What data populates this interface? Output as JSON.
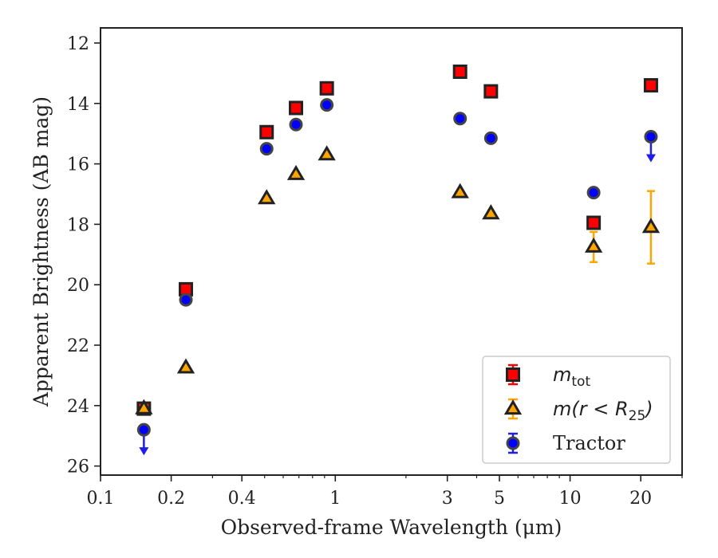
{
  "chart_data": {
    "type": "scatter",
    "xlabel": "Observed-frame Wavelength (μm)",
    "ylabel": "Apparent Brightness (AB mag)",
    "xscale": "log",
    "xlim": [
      0.1,
      30
    ],
    "ylim": [
      26.3,
      11.5
    ],
    "y_inverted": true,
    "x_ticks": [
      {
        "value": 0.1,
        "label": "0.1"
      },
      {
        "value": 0.2,
        "label": "0.2"
      },
      {
        "value": 0.4,
        "label": "0.4"
      },
      {
        "value": 1,
        "label": "1"
      },
      {
        "value": 3,
        "label": "3"
      },
      {
        "value": 5,
        "label": "5"
      },
      {
        "value": 10,
        "label": "10"
      },
      {
        "value": 20,
        "label": "20"
      }
    ],
    "y_ticks": [
      {
        "value": 12,
        "label": "12"
      },
      {
        "value": 14,
        "label": "14"
      },
      {
        "value": 16,
        "label": "16"
      },
      {
        "value": 18,
        "label": "18"
      },
      {
        "value": 20,
        "label": "20"
      },
      {
        "value": 22,
        "label": "22"
      },
      {
        "value": 24,
        "label": "24"
      },
      {
        "value": 26,
        "label": "26"
      }
    ],
    "grid": false,
    "legend_position": "lower-right",
    "series": [
      {
        "name_main": "m",
        "name_sub": "tot",
        "marker": "square",
        "color": "#ff0000",
        "edge": "#222222",
        "error_color": "#ff0000",
        "points": [
          {
            "x": 0.153,
            "y": 24.1,
            "err": 0.15
          },
          {
            "x": 0.231,
            "y": 20.15,
            "err": 0.1
          },
          {
            "x": 0.51,
            "y": 14.95,
            "err": 0.05
          },
          {
            "x": 0.68,
            "y": 14.15,
            "err": 0.05
          },
          {
            "x": 0.92,
            "y": 13.5,
            "err": 0.05
          },
          {
            "x": 3.4,
            "y": 12.95,
            "err": 0.05
          },
          {
            "x": 4.6,
            "y": 13.6,
            "err": 0.05
          },
          {
            "x": 12.6,
            "y": 17.95,
            "err": 0.1
          },
          {
            "x": 22.1,
            "y": 13.4,
            "err": 0.1
          }
        ]
      },
      {
        "name_main": "m(r < R",
        "name_sub": "25",
        "name_tail": ")",
        "marker": "triangle",
        "color": "#ffa500",
        "edge": "#222222",
        "error_color": "#ffa500",
        "points": [
          {
            "x": 0.153,
            "y": 24.1,
            "err": 0.1
          },
          {
            "x": 0.231,
            "y": 22.75,
            "err": 0.05
          },
          {
            "x": 0.51,
            "y": 17.15,
            "err": 0.05
          },
          {
            "x": 0.68,
            "y": 16.35,
            "err": 0.05
          },
          {
            "x": 0.92,
            "y": 15.7,
            "err": 0.05
          },
          {
            "x": 3.4,
            "y": 16.95,
            "err": 0.05
          },
          {
            "x": 4.6,
            "y": 17.65,
            "err": 0.05
          },
          {
            "x": 12.6,
            "y": 18.75,
            "err": 0.5
          },
          {
            "x": 22.1,
            "y": 18.1,
            "err": 1.2
          }
        ]
      },
      {
        "name_main": "Tractor",
        "marker": "circle",
        "color": "#0000ff",
        "edge": "#444444",
        "error_color": "#1e1ee6",
        "points": [
          {
            "x": 0.153,
            "y": 24.8,
            "upper_limit": true
          },
          {
            "x": 0.231,
            "y": 20.5,
            "err": 0.05
          },
          {
            "x": 0.51,
            "y": 15.5,
            "err": 0.05
          },
          {
            "x": 0.68,
            "y": 14.7,
            "err": 0.05
          },
          {
            "x": 0.92,
            "y": 14.05,
            "err": 0.05
          },
          {
            "x": 3.4,
            "y": 14.5,
            "err": 0.05
          },
          {
            "x": 4.6,
            "y": 15.15,
            "err": 0.05
          },
          {
            "x": 12.6,
            "y": 16.95,
            "err": 0.05
          },
          {
            "x": 22.1,
            "y": 15.1,
            "upper_limit": true
          }
        ]
      }
    ]
  }
}
